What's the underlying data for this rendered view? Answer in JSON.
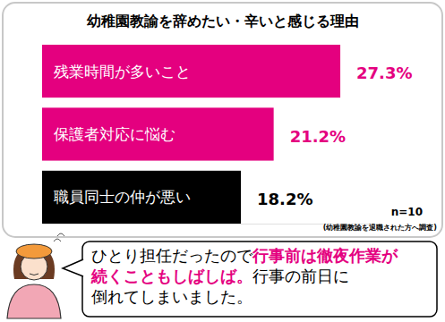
{
  "chart_data": {
    "type": "bar",
    "orientation": "horizontal",
    "title": "幼稚園教諭を辞めたい・辛いと感じる理由",
    "categories": [
      "残業時間が多いこと",
      "保護者対応に悩む",
      "職員同士の仲が悪い"
    ],
    "values": [
      27.3,
      21.2,
      18.2
    ],
    "value_labels": [
      "27.3%",
      "21.2%",
      "18.2%"
    ],
    "colors": [
      "#e4007f",
      "#e4007f",
      "#000000"
    ],
    "data_labels": true,
    "tick_labels": false,
    "xlim": [
      0,
      30
    ],
    "sample_size": "n=10",
    "note": "(幼稚園教諭を退職された方へ調査)",
    "annotation": {
      "lines": [
        [
          "ひとり担任だったので",
          "行事前は徹夜作業が"
        ],
        [
          "続くこともしばしば。",
          "行事の前日に"
        ],
        [
          "倒れてしまいました。"
        ]
      ],
      "emphasis": [
        "行事前は徹夜作業が",
        "続くこともしばしば。"
      ],
      "emphasis_color": "#e4007f"
    }
  }
}
